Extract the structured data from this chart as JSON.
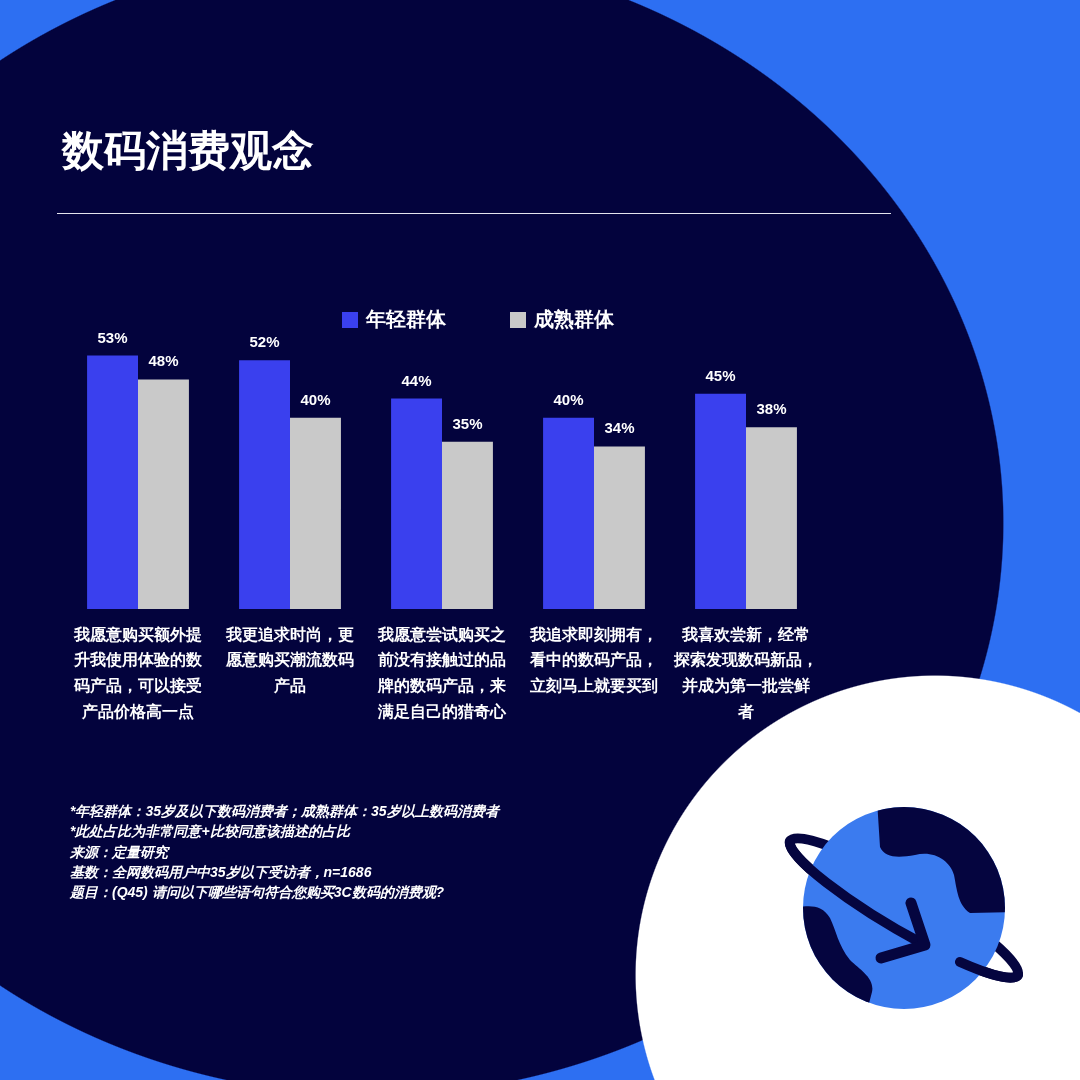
{
  "chart_data": {
    "type": "bar",
    "title": "数码消费观念",
    "categories": [
      "我愿意购买额外提升我使用体验的数码产品，可以接受产品价格高一点",
      "我更追求时尚，更愿意购买潮流数码产品",
      "我愿意尝试购买之前没有接触过的品牌的数码产品，来满足自己的猎奇心",
      "我追求即刻拥有，看中的数码产品，立刻马上就要买到",
      "我喜欢尝新，经常探索发现数码新品，并成为第一批尝鲜者"
    ],
    "series": [
      {
        "name": "年轻群体",
        "color": "#3a40ee",
        "values": [
          53,
          52,
          44,
          40,
          45
        ],
        "value_labels": [
          "53%",
          "52%",
          "44%",
          "40%",
          "45%"
        ]
      },
      {
        "name": "成熟群体",
        "color": "#c9c9c9",
        "values": [
          48,
          40,
          35,
          34,
          38
        ],
        "value_labels": [
          "48%",
          "40%",
          "35%",
          "34%",
          "38%"
        ]
      }
    ],
    "legend": "top",
    "annotations": [
      "*年轻群体：35岁及以下数码消费者；成熟群体：35岁以上数码消费者",
      "*此处占比为非常同意+比较同意该描述的占比",
      "来源：定量研究",
      "基数：全网数码用户中35岁以下受访者，n=1686",
      "题目：(Q45) 请问以下哪些语句符合您购买3C数码的消费观?"
    ]
  }
}
